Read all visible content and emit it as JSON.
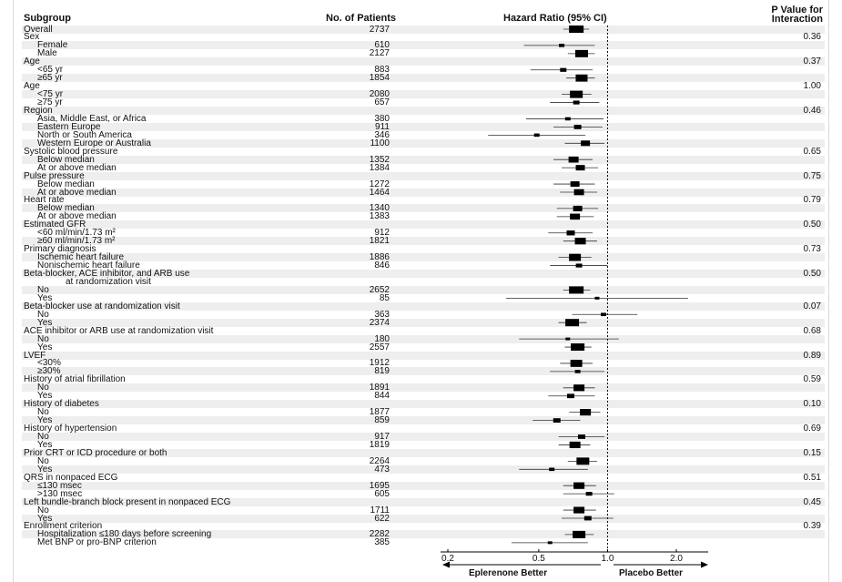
{
  "header": {
    "subgroup": "Subgroup",
    "patients": "No. of Patients",
    "hr": "Hazard Ratio (95% CI)",
    "pval_line1": "P Value for",
    "pval_line2": "Interaction"
  },
  "footer": {
    "left_label": "Eplerenone Better",
    "right_label": "Placebo Better"
  },
  "chart_data": {
    "type": "forest",
    "x_scale": "log",
    "xlim": [
      0.2,
      2.5
    ],
    "x_ticks": [
      0.2,
      0.5,
      1.0,
      2.0
    ],
    "x_tick_labels": [
      "0.2",
      "0.5",
      "1.0",
      "2.0"
    ],
    "reference_line": 1.0,
    "rows": [
      {
        "label": "Overall",
        "n": "2737",
        "hr": 0.73,
        "lo": 0.64,
        "hi": 0.83,
        "w": 16,
        "level": 0
      },
      {
        "label": "Sex",
        "p": "0.36",
        "level": 0
      },
      {
        "label": "Female",
        "n": "610",
        "hr": 0.63,
        "lo": 0.43,
        "hi": 0.88,
        "w": 6,
        "level": 1
      },
      {
        "label": "Male",
        "n": "2127",
        "hr": 0.77,
        "lo": 0.67,
        "hi": 0.88,
        "w": 14,
        "level": 1
      },
      {
        "label": "Age",
        "p": "0.37",
        "level": 0
      },
      {
        "label": "<65 yr",
        "n": "883",
        "hr": 0.64,
        "lo": 0.46,
        "hi": 0.86,
        "w": 7,
        "level": 1
      },
      {
        "label": "≥65 yr",
        "n": "1854",
        "hr": 0.77,
        "lo": 0.66,
        "hi": 0.88,
        "w": 13,
        "level": 1
      },
      {
        "label": "Age",
        "p": "1.00",
        "level": 0
      },
      {
        "label": "<75 yr",
        "n": "2080",
        "hr": 0.73,
        "lo": 0.63,
        "hi": 0.85,
        "w": 14,
        "level": 1
      },
      {
        "label": "≥75 yr",
        "n": "657",
        "hr": 0.73,
        "lo": 0.56,
        "hi": 0.92,
        "w": 7,
        "level": 1
      },
      {
        "label": "Region",
        "p": "0.46",
        "level": 0
      },
      {
        "label": "Asia, Middle East, or Africa",
        "n": "380",
        "hr": 0.67,
        "lo": 0.44,
        "hi": 0.96,
        "w": 6,
        "level": 1
      },
      {
        "label": "Eastern Europe",
        "n": "911",
        "hr": 0.74,
        "lo": 0.58,
        "hi": 0.95,
        "w": 8,
        "level": 1
      },
      {
        "label": "North or South America",
        "n": "346",
        "hr": 0.49,
        "lo": 0.3,
        "hi": 0.8,
        "w": 6,
        "level": 1
      },
      {
        "label": "Western Europe or Australia",
        "n": "1100",
        "hr": 0.8,
        "lo": 0.65,
        "hi": 0.97,
        "w": 10,
        "level": 1
      },
      {
        "label": "Systolic blood pressure",
        "p": "0.65",
        "level": 0
      },
      {
        "label": "Below median",
        "n": "1352",
        "hr": 0.71,
        "lo": 0.58,
        "hi": 0.86,
        "w": 11,
        "level": 1
      },
      {
        "label": "At or above median",
        "n": "1384",
        "hr": 0.76,
        "lo": 0.63,
        "hi": 0.91,
        "w": 10,
        "level": 1
      },
      {
        "label": "Pulse pressure",
        "p": "0.75",
        "level": 0
      },
      {
        "label": "Below median",
        "n": "1272",
        "hr": 0.72,
        "lo": 0.58,
        "hi": 0.88,
        "w": 10,
        "level": 1
      },
      {
        "label": "At or above median",
        "n": "1464",
        "hr": 0.75,
        "lo": 0.62,
        "hi": 0.9,
        "w": 11,
        "level": 1
      },
      {
        "label": "Heart rate",
        "p": "0.79",
        "level": 0
      },
      {
        "label": "Below median",
        "n": "1340",
        "hr": 0.74,
        "lo": 0.6,
        "hi": 0.91,
        "w": 10,
        "level": 1
      },
      {
        "label": "At or above median",
        "n": "1383",
        "hr": 0.72,
        "lo": 0.6,
        "hi": 0.87,
        "w": 11,
        "level": 1
      },
      {
        "label": "Estimated GFR",
        "p": "0.50",
        "level": 0
      },
      {
        "label": "<60 ml/min/1.73 m²",
        "n": "912",
        "hr": 0.69,
        "lo": 0.55,
        "hi": 0.86,
        "w": 9,
        "level": 1
      },
      {
        "label": "≥60 ml/min/1.73 m²",
        "n": "1821",
        "hr": 0.76,
        "lo": 0.64,
        "hi": 0.9,
        "w": 12,
        "level": 1
      },
      {
        "label": "Primary diagnosis",
        "p": "0.73",
        "level": 0
      },
      {
        "label": "Ischemic heart failure",
        "n": "1886",
        "hr": 0.72,
        "lo": 0.61,
        "hi": 0.85,
        "w": 13,
        "level": 1
      },
      {
        "label": "Nonischemic heart failure",
        "n": "846",
        "hr": 0.75,
        "lo": 0.56,
        "hi": 1.0,
        "w": 7,
        "level": 1
      },
      {
        "label": "Beta-blocker, ACE inhibitor, and ARB use",
        "p": "0.50",
        "level": 0
      },
      {
        "label": "at randomization visit",
        "level": 2
      },
      {
        "label": "No",
        "n": "2652",
        "hr": 0.73,
        "lo": 0.64,
        "hi": 0.84,
        "w": 16,
        "level": 1
      },
      {
        "label": "Yes",
        "n": "85",
        "hr": 0.9,
        "lo": 0.36,
        "hi": 2.25,
        "w": 5,
        "level": 1
      },
      {
        "label": "Beta-blocker use at randomization visit",
        "p": "0.07",
        "level": 0
      },
      {
        "label": "No",
        "n": "363",
        "hr": 0.96,
        "lo": 0.7,
        "hi": 1.35,
        "w": 6,
        "level": 1
      },
      {
        "label": "Yes",
        "n": "2374",
        "hr": 0.7,
        "lo": 0.61,
        "hi": 0.81,
        "w": 15,
        "level": 1
      },
      {
        "label": "ACE inhibitor or ARB use at randomization visit",
        "p": "0.68",
        "level": 0
      },
      {
        "label": "No",
        "n": "180",
        "hr": 0.67,
        "lo": 0.41,
        "hi": 1.12,
        "w": 5,
        "level": 1
      },
      {
        "label": "Yes",
        "n": "2557",
        "hr": 0.74,
        "lo": 0.65,
        "hi": 0.85,
        "w": 15,
        "level": 1
      },
      {
        "label": "LVEF",
        "p": "0.89",
        "level": 0
      },
      {
        "label": "<30%",
        "n": "1912",
        "hr": 0.73,
        "lo": 0.62,
        "hi": 0.86,
        "w": 13,
        "level": 1
      },
      {
        "label": "≥30%",
        "n": "819",
        "hr": 0.74,
        "lo": 0.56,
        "hi": 0.97,
        "w": 6,
        "level": 1
      },
      {
        "label": "History of atrial fibrillation",
        "p": "0.59",
        "level": 0
      },
      {
        "label": "No",
        "n": "1891",
        "hr": 0.75,
        "lo": 0.64,
        "hi": 0.88,
        "w": 12,
        "level": 1
      },
      {
        "label": "Yes",
        "n": "844",
        "hr": 0.69,
        "lo": 0.55,
        "hi": 0.88,
        "w": 8,
        "level": 1
      },
      {
        "label": "History of diabetes",
        "p": "0.10",
        "level": 0
      },
      {
        "label": "No",
        "n": "1877",
        "hr": 0.8,
        "lo": 0.68,
        "hi": 0.93,
        "w": 12,
        "level": 1
      },
      {
        "label": "Yes",
        "n": "859",
        "hr": 0.6,
        "lo": 0.47,
        "hi": 0.76,
        "w": 8,
        "level": 1
      },
      {
        "label": "History of hypertension",
        "p": "0.69",
        "level": 0
      },
      {
        "label": "No",
        "n": "917",
        "hr": 0.77,
        "lo": 0.61,
        "hi": 0.97,
        "w": 8,
        "level": 1
      },
      {
        "label": "Yes",
        "n": "1819",
        "hr": 0.72,
        "lo": 0.61,
        "hi": 0.84,
        "w": 12,
        "level": 1
      },
      {
        "label": "Prior CRT or ICD procedure or both",
        "p": "0.15",
        "level": 0
      },
      {
        "label": "No",
        "n": "2264",
        "hr": 0.78,
        "lo": 0.67,
        "hi": 0.9,
        "w": 14,
        "level": 1
      },
      {
        "label": "Yes",
        "n": "473",
        "hr": 0.57,
        "lo": 0.41,
        "hi": 0.82,
        "w": 6,
        "level": 1
      },
      {
        "label": "QRS in nonpaced ECG",
        "p": "0.51",
        "level": 0
      },
      {
        "label": "≤130 msec",
        "n": "1695",
        "hr": 0.75,
        "lo": 0.64,
        "hi": 0.89,
        "w": 12,
        "level": 1
      },
      {
        "label": ">130 msec",
        "n": "605",
        "hr": 0.83,
        "lo": 0.64,
        "hi": 1.07,
        "w": 7,
        "level": 1
      },
      {
        "label": "Left bundle-branch block present in nonpaced ECG",
        "p": "0.45",
        "level": 0
      },
      {
        "label": "No",
        "n": "1711",
        "hr": 0.75,
        "lo": 0.64,
        "hi": 0.89,
        "w": 12,
        "level": 1
      },
      {
        "label": "Yes",
        "n": "622",
        "hr": 0.82,
        "lo": 0.63,
        "hi": 1.06,
        "w": 8,
        "level": 1
      },
      {
        "label": "Enrollment criterion",
        "p": "0.39",
        "level": 0
      },
      {
        "label": "Hospitalization ≤180 days before screening",
        "n": "2282",
        "hr": 0.75,
        "lo": 0.65,
        "hi": 0.87,
        "w": 14,
        "level": 1
      },
      {
        "label": "Met BNP or pro-BNP criterion",
        "n": "385",
        "hr": 0.56,
        "lo": 0.38,
        "hi": 0.82,
        "w": 5,
        "level": 1
      }
    ]
  }
}
